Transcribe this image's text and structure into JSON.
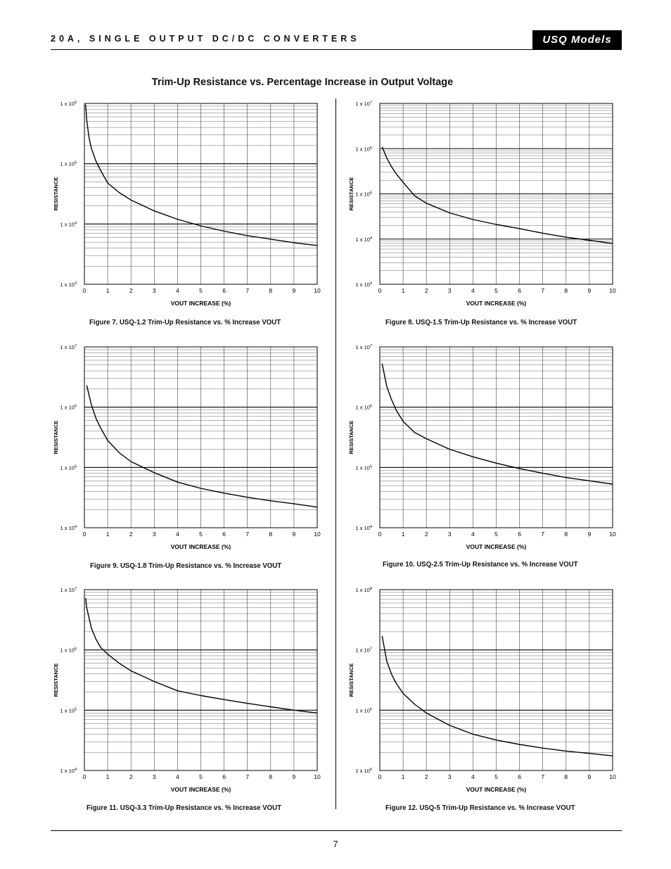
{
  "header": {
    "title": "20A, SINGLE OUTPUT DC/DC CONVERTERS",
    "brand": "USQ Models"
  },
  "page_heading": "Trim-Up Resistance vs. Percentage Increase in Output Voltage",
  "page_number": "7",
  "chart_data": [
    {
      "type": "line",
      "caption": "Figure 7. USQ-1.2 Trim-Up Resistance vs. % Increase VOUT",
      "xlabel": "VOUT INCREASE (%)",
      "ylabel": "RESISTANCE",
      "x_ticks": [
        "0",
        "1",
        "2",
        "3",
        "4",
        "5",
        "6",
        "7",
        "8",
        "9",
        "10"
      ],
      "y_ticks": [
        "1 x 10^3",
        "1 x 10^4",
        "1 x 10^5",
        "1 x 10^6"
      ],
      "xlim": [
        0,
        10
      ],
      "ylim": [
        1000,
        1000000
      ],
      "yscale": "log",
      "grid": true,
      "series": [
        {
          "x": [
            0.05,
            0.1,
            0.2,
            0.3,
            0.5,
            0.7,
            1,
            1.5,
            2,
            3,
            4,
            5,
            6,
            7,
            8,
            9,
            10
          ],
          "y": [
            960000,
            530000,
            270000,
            180000,
            110000,
            77000,
            48000,
            33000,
            25000,
            16500,
            12000,
            9300,
            7600,
            6400,
            5600,
            4900,
            4400
          ]
        }
      ]
    },
    {
      "type": "line",
      "caption": "Figure 8. USQ-1.5 Trim-Up Resistance vs. % Increase VOUT",
      "xlabel": "VOUT INCREASE (%)",
      "ylabel": "RESISTANCE",
      "x_ticks": [
        "0",
        "1",
        "2",
        "3",
        "4",
        "5",
        "6",
        "7",
        "8",
        "9",
        "10"
      ],
      "y_ticks": [
        "1 x 10^3",
        "1 x 10^4",
        "1 x 10^5",
        "1 x 10^6",
        "1 x 10^7"
      ],
      "xlim": [
        0,
        10
      ],
      "ylim": [
        1000,
        10000000
      ],
      "yscale": "log",
      "grid": true,
      "series": [
        {
          "x": [
            0.1,
            0.3,
            0.5,
            0.7,
            1,
            1.5,
            2,
            3,
            4,
            5,
            6,
            7,
            8,
            9,
            10
          ],
          "y": [
            1100000,
            620000,
            400000,
            280000,
            180000,
            90000,
            62000,
            38000,
            27000,
            21000,
            17000,
            13500,
            11000,
            9400,
            8000
          ]
        }
      ]
    },
    {
      "type": "line",
      "caption": "Figure 9. USQ-1.8 Trim-Up Resistance vs. % Increase VOUT",
      "xlabel": "VOUT INCREASE (%)",
      "ylabel": "RESISTANCE",
      "x_ticks": [
        "0",
        "1",
        "2",
        "3",
        "4",
        "5",
        "6",
        "7",
        "8",
        "9",
        "10"
      ],
      "y_ticks": [
        "1 x 10^4",
        "1 x 10^5",
        "1 x 10^6",
        "1 x 10^7"
      ],
      "xlim": [
        0,
        10
      ],
      "ylim": [
        10000,
        10000000
      ],
      "yscale": "log",
      "grid": true,
      "series": [
        {
          "x": [
            0.1,
            0.3,
            0.5,
            0.7,
            1,
            1.5,
            2,
            3,
            4,
            5,
            6,
            7,
            8,
            9,
            10
          ],
          "y": [
            2300000,
            1100000,
            650000,
            450000,
            280000,
            175000,
            125000,
            82000,
            57000,
            45000,
            37500,
            32000,
            28000,
            25000,
            22000
          ]
        }
      ]
    },
    {
      "type": "line",
      "caption": "Figure 10. USQ-2.5 Trim-Up Resistance vs. % Increase VOUT",
      "xlabel": "VOUT INCREASE (%)",
      "ylabel": "RESISTANCE",
      "x_ticks": [
        "0",
        "1",
        "2",
        "3",
        "4",
        "5",
        "6",
        "7",
        "8",
        "9",
        "10"
      ],
      "y_ticks": [
        "1 x 10^4",
        "1 x 10^5",
        "1 x 10^6",
        "1 x 10^7"
      ],
      "xlim": [
        0,
        10
      ],
      "ylim": [
        10000,
        10000000
      ],
      "yscale": "log",
      "grid": true,
      "series": [
        {
          "x": [
            0.1,
            0.3,
            0.5,
            0.7,
            1,
            1.5,
            2,
            3,
            4,
            5,
            6,
            7,
            8,
            9,
            10
          ],
          "y": [
            5300000,
            2200000,
            1350000,
            900000,
            580000,
            380000,
            300000,
            200000,
            150000,
            118000,
            96000,
            80000,
            68000,
            60000,
            53000
          ]
        }
      ]
    },
    {
      "type": "line",
      "caption": "Figure 11. USQ-3.3 Trim-Up Resistance vs. % Increase VOUT",
      "xlabel": "VOUT INCREASE (%)",
      "ylabel": "RESISTANCE",
      "x_ticks": [
        "0",
        "1",
        "2",
        "3",
        "4",
        "5",
        "6",
        "7",
        "8",
        "9",
        "10"
      ],
      "y_ticks": [
        "1 x 10^4",
        "1 x 10^5",
        "1 x 10^6",
        "1 x 10^7"
      ],
      "xlim": [
        0,
        10
      ],
      "ylim": [
        10000,
        10000000
      ],
      "yscale": "log",
      "grid": true,
      "series": [
        {
          "x": [
            0.05,
            0.1,
            0.3,
            0.5,
            0.7,
            1,
            1.5,
            2,
            3,
            4,
            5,
            6,
            7,
            8,
            9,
            10
          ],
          "y": [
            7200000,
            5000000,
            2300000,
            1500000,
            1100000,
            850000,
            600000,
            450000,
            300000,
            210000,
            175000,
            150000,
            130000,
            114000,
            100000,
            90000
          ]
        }
      ]
    },
    {
      "type": "line",
      "caption": "Figure 12. USQ-5 Trim-Up Resistance vs. % Increase VOUT",
      "xlabel": "VOUT INCREASE (%)",
      "ylabel": "RESISTANCE",
      "x_ticks": [
        "0",
        "1",
        "2",
        "3",
        "4",
        "5",
        "6",
        "7",
        "8",
        "9",
        "10"
      ],
      "y_ticks": [
        "1 x 10^5",
        "1 x 10^6",
        "1 x 10^7",
        "1 x 10^8"
      ],
      "xlim": [
        0,
        10
      ],
      "ylim": [
        100000,
        100000000
      ],
      "yscale": "log",
      "grid": true,
      "series": [
        {
          "x": [
            0.1,
            0.3,
            0.5,
            0.7,
            1,
            1.5,
            2,
            3,
            4,
            5,
            6,
            7,
            8,
            9,
            10
          ],
          "y": [
            17000000,
            6500000,
            4000000,
            2800000,
            1900000,
            1250000,
            900000,
            560000,
            400000,
            320000,
            270000,
            235000,
            210000,
            192000,
            175000
          ]
        }
      ]
    }
  ]
}
